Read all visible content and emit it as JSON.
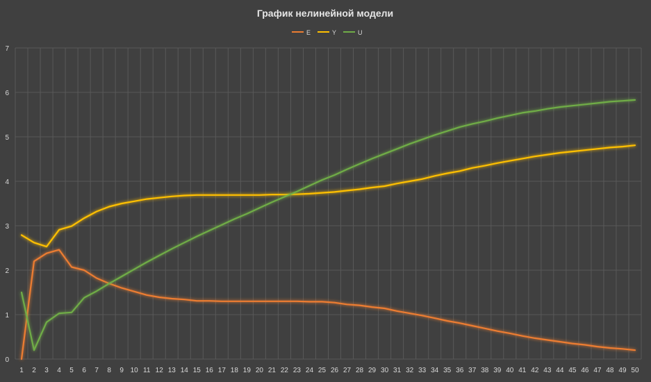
{
  "colors": {
    "background": "#404040",
    "grid": "#595959",
    "axis_text": "#d9d9d9",
    "title": "#e6e6e6"
  },
  "chart_data": {
    "type": "line",
    "title": "График нелинейной модели",
    "xlabel": "",
    "ylabel": "",
    "ylim": [
      0,
      7
    ],
    "yticks": [
      0,
      1,
      2,
      3,
      4,
      5,
      6,
      7
    ],
    "grid": true,
    "legend": "top-center",
    "x": [
      1,
      2,
      3,
      4,
      5,
      6,
      7,
      8,
      9,
      10,
      11,
      12,
      13,
      14,
      15,
      16,
      17,
      18,
      19,
      20,
      21,
      22,
      23,
      24,
      25,
      26,
      27,
      28,
      29,
      30,
      31,
      32,
      33,
      34,
      35,
      36,
      37,
      38,
      39,
      40,
      41,
      42,
      43,
      44,
      45,
      46,
      47,
      48,
      49,
      50
    ],
    "series": [
      {
        "name": "E",
        "color": "#ed7d31",
        "values": [
          0,
          2.2,
          2.38,
          2.46,
          2.07,
          2.0,
          1.82,
          1.7,
          1.6,
          1.52,
          1.44,
          1.39,
          1.36,
          1.34,
          1.31,
          1.31,
          1.3,
          1.3,
          1.3,
          1.3,
          1.3,
          1.3,
          1.3,
          1.29,
          1.29,
          1.27,
          1.23,
          1.21,
          1.17,
          1.14,
          1.08,
          1.03,
          0.98,
          0.92,
          0.86,
          0.81,
          0.75,
          0.69,
          0.63,
          0.58,
          0.52,
          0.47,
          0.43,
          0.39,
          0.35,
          0.32,
          0.28,
          0.25,
          0.23,
          0.2
        ]
      },
      {
        "name": "Y",
        "color": "#ffc000",
        "values": [
          2.79,
          2.62,
          2.53,
          2.91,
          2.99,
          3.17,
          3.32,
          3.43,
          3.5,
          3.55,
          3.6,
          3.63,
          3.66,
          3.68,
          3.69,
          3.69,
          3.69,
          3.69,
          3.69,
          3.69,
          3.7,
          3.7,
          3.71,
          3.72,
          3.74,
          3.76,
          3.79,
          3.82,
          3.86,
          3.89,
          3.95,
          4.0,
          4.05,
          4.12,
          4.18,
          4.23,
          4.3,
          4.35,
          4.41,
          4.46,
          4.51,
          4.56,
          4.6,
          4.64,
          4.67,
          4.7,
          4.73,
          4.76,
          4.78,
          4.81
        ]
      },
      {
        "name": "U",
        "color": "#70ad47",
        "values": [
          1.5,
          0.2,
          0.83,
          1.03,
          1.05,
          1.38,
          1.53,
          1.7,
          1.86,
          2.02,
          2.18,
          2.33,
          2.48,
          2.62,
          2.76,
          2.89,
          3.02,
          3.15,
          3.27,
          3.4,
          3.53,
          3.65,
          3.77,
          3.9,
          4.03,
          4.14,
          4.27,
          4.39,
          4.51,
          4.62,
          4.73,
          4.84,
          4.94,
          5.04,
          5.13,
          5.22,
          5.29,
          5.35,
          5.42,
          5.48,
          5.54,
          5.58,
          5.63,
          5.67,
          5.7,
          5.73,
          5.76,
          5.79,
          5.81,
          5.83
        ]
      }
    ]
  }
}
